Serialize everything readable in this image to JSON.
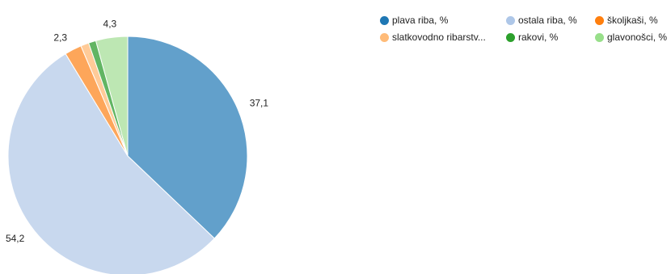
{
  "chart_data": {
    "type": "pie",
    "slices": [
      {
        "name": "plava riba, %",
        "legend_label": "plava riba, %",
        "value": 37.1,
        "label": "37,1",
        "color": "#62a0cb",
        "legend_color": "#1f77b4"
      },
      {
        "name": "ostala riba, %",
        "legend_label": "ostala riba, %",
        "value": 54.2,
        "label": "54,2",
        "color": "#c8d8ee",
        "legend_color": "#aec7e8"
      },
      {
        "name": "školjkaši, %",
        "legend_label": "školjkaši, %",
        "value": 2.3,
        "label": "2,3",
        "color": "#fda65a",
        "legend_color": "#ff7f0e"
      },
      {
        "name": "slatkovodno ribarstvo, %",
        "legend_label": "slatkovodno ribarstv...",
        "value": 1.1,
        "label": "",
        "color": "#ffcb98",
        "legend_color": "#ffbb78"
      },
      {
        "name": "rakovi, %",
        "legend_label": "rakovi, %",
        "value": 1.0,
        "label": "",
        "color": "#62b563",
        "legend_color": "#2ca02c"
      },
      {
        "name": "glavonošci, %",
        "legend_label": "glavonošci, %",
        "value": 4.3,
        "label": "4,3",
        "color": "#bde7b3",
        "legend_color": "#98df8a"
      }
    ],
    "legend_position": "top-right"
  }
}
